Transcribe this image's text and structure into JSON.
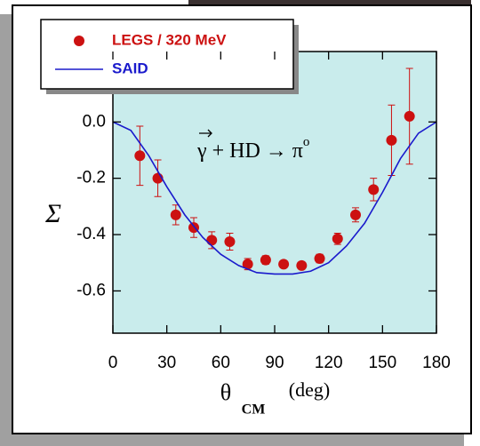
{
  "chart_data": {
    "type": "scatter",
    "annotation": "γ + HD → π",
    "annotation_sup": "o",
    "y_label": "Σ",
    "x_label": {
      "symbol": "θ",
      "subscript": "CM",
      "unit": "(deg)"
    },
    "xlim": [
      0,
      180
    ],
    "xticks": [
      0,
      30,
      60,
      90,
      120,
      150,
      180
    ],
    "ylim": [
      -0.75,
      0.25
    ],
    "yticks": [
      -0.6,
      -0.4,
      -0.2,
      {
        "value": 0,
        "label": "0.0"
      }
    ],
    "legend": "top-left",
    "series": [
      {
        "name": "LEGS / 320 MeV",
        "color": "#cc1111",
        "kind": "points",
        "x": [
          15,
          25,
          35,
          45,
          55,
          65,
          75,
          85,
          95,
          105,
          115,
          125,
          135,
          145,
          155,
          165
        ],
        "values": [
          -0.12,
          -0.2,
          -0.33,
          -0.375,
          -0.42,
          -0.425,
          -0.505,
          -0.49,
          -0.505,
          -0.51,
          -0.485,
          -0.415,
          -0.33,
          -0.24,
          -0.065,
          0.02
        ],
        "errors": [
          0.105,
          0.065,
          0.035,
          0.035,
          0.03,
          0.03,
          0.02,
          0.015,
          0.01,
          0.01,
          0.015,
          0.02,
          0.025,
          0.04,
          0.125,
          0.17
        ]
      },
      {
        "name": "SAID",
        "color": "#1a1acc",
        "kind": "line",
        "x": [
          0,
          10,
          20,
          30,
          40,
          50,
          60,
          70,
          80,
          90,
          100,
          110,
          120,
          130,
          140,
          150,
          160,
          170,
          180
        ],
        "values": [
          0,
          -0.03,
          -0.12,
          -0.23,
          -0.33,
          -0.41,
          -0.47,
          -0.51,
          -0.535,
          -0.54,
          -0.54,
          -0.53,
          -0.5,
          -0.44,
          -0.36,
          -0.25,
          -0.13,
          -0.04,
          0
        ]
      }
    ]
  }
}
